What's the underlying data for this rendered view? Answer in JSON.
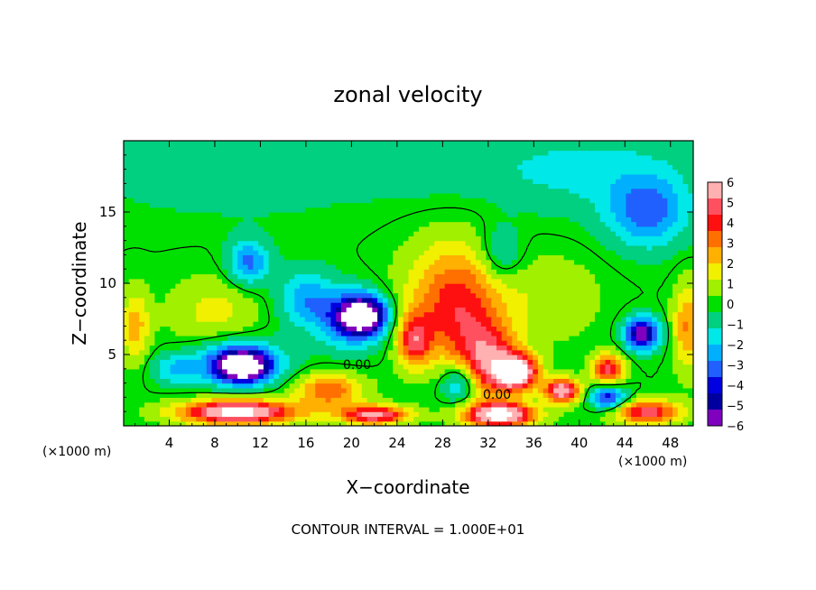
{
  "chart_data": {
    "type": "heatmap",
    "title": "zonal velocity",
    "xlabel": "X−coordinate",
    "ylabel": "Z−coordinate",
    "x_unit_label": "(×1000 m)",
    "x_unit_label_right": "(×1000 m)",
    "xlim": [
      0,
      50
    ],
    "ylim": [
      0,
      20
    ],
    "x_ticks": [
      "4",
      "8",
      "12",
      "16",
      "20",
      "24",
      "28",
      "32",
      "36",
      "40",
      "44",
      "48"
    ],
    "y_ticks": [
      "5",
      "10",
      "15"
    ],
    "colorbar": {
      "range": [
        -6,
        6
      ],
      "labels": [
        "6",
        "5",
        "4",
        "3",
        "2",
        "1",
        "0",
        "−1",
        "−2",
        "−3",
        "−4",
        "−5",
        "−6"
      ],
      "colors": [
        "#ffb0b0",
        "#ff5060",
        "#ff1010",
        "#ff7000",
        "#ffb000",
        "#f0f000",
        "#a0f000",
        "#00e000",
        "#00d080",
        "#00e8e8",
        "#00b0ff",
        "#2060ff",
        "#0000e0",
        "#0000a0",
        "#8000c0"
      ]
    },
    "contour_labels": [
      "0.00",
      "0.00"
    ],
    "footer": "CONTOUR INTERVAL = 1.000E+01",
    "features": [
      {
        "x": 11.0,
        "z": 11.5,
        "value": -3.2,
        "sx": 1.8,
        "sz": 1.6
      },
      {
        "x": 16.0,
        "z": 9.0,
        "value": -2.5,
        "sx": 2.5,
        "sz": 2.0
      },
      {
        "x": 21.0,
        "z": 7.8,
        "value": -7.0,
        "sx": 1.9,
        "sz": 1.2
      },
      {
        "x": 20.0,
        "z": 7.5,
        "value": -3.5,
        "sx": 3.0,
        "sz": 2.0
      },
      {
        "x": 10.5,
        "z": 4.2,
        "value": -7.0,
        "sx": 2.2,
        "sz": 1.0
      },
      {
        "x": 10.0,
        "z": 4.5,
        "value": -3.5,
        "sx": 4.0,
        "sz": 1.6
      },
      {
        "x": 45.5,
        "z": 6.5,
        "value": -6.5,
        "sx": 1.4,
        "sz": 1.1
      },
      {
        "x": 46.0,
        "z": 15.0,
        "value": -3.2,
        "sx": 3.5,
        "sz": 2.5
      },
      {
        "x": 33.0,
        "z": 12.0,
        "value": -2.0,
        "sx": 2.0,
        "sz": 2.0
      },
      {
        "x": 29.5,
        "z": 3.0,
        "value": -3.0,
        "sx": 1.5,
        "sz": 1.3
      },
      {
        "x": 42.5,
        "z": 2.0,
        "value": -4.5,
        "sx": 1.5,
        "sz": 0.8
      },
      {
        "x": 4.5,
        "z": 4.0,
        "value": -2.0,
        "sx": 2.0,
        "sz": 1.0
      },
      {
        "x": 29.5,
        "z": 10.0,
        "value": 2.8,
        "sx": 4.5,
        "sz": 3.5
      },
      {
        "x": 29.0,
        "z": 7.0,
        "value": 2.5,
        "sx": 4.0,
        "sz": 3.0
      },
      {
        "x": 32.0,
        "z": 4.5,
        "value": 4.5,
        "sx": 2.5,
        "sz": 2.5
      },
      {
        "x": 34.5,
        "z": 3.8,
        "value": 7.5,
        "sx": 1.8,
        "sz": 1.2
      },
      {
        "x": 38.5,
        "z": 2.5,
        "value": 6.5,
        "sx": 1.5,
        "sz": 0.8
      },
      {
        "x": 25.5,
        "z": 6.0,
        "value": 4.0,
        "sx": 1.4,
        "sz": 1.8
      },
      {
        "x": 18.0,
        "z": 2.5,
        "value": 3.5,
        "sx": 3.0,
        "sz": 1.2
      },
      {
        "x": 10.0,
        "z": 1.0,
        "value": 7.5,
        "sx": 5.0,
        "sz": 0.8
      },
      {
        "x": 22.0,
        "z": 0.8,
        "value": 6.0,
        "sx": 3.0,
        "sz": 0.6
      },
      {
        "x": 33.0,
        "z": 0.8,
        "value": 7.5,
        "sx": 3.0,
        "sz": 0.8
      },
      {
        "x": 46.0,
        "z": 1.0,
        "value": 5.0,
        "sx": 3.0,
        "sz": 0.8
      },
      {
        "x": 42.5,
        "z": 4.0,
        "value": 5.0,
        "sx": 1.3,
        "sz": 1.0
      },
      {
        "x": 1.0,
        "z": 7.0,
        "value": 2.5,
        "sx": 1.2,
        "sz": 2.5
      },
      {
        "x": 49.5,
        "z": 7.0,
        "value": 3.0,
        "sx": 1.2,
        "sz": 3.0
      },
      {
        "x": 8.0,
        "z": 8.0,
        "value": 1.5,
        "sx": 4.0,
        "sz": 2.5
      },
      {
        "x": 38.0,
        "z": 9.0,
        "value": 1.0,
        "sx": 4.0,
        "sz": 3.0
      },
      {
        "x": 10.0,
        "z": 18.0,
        "value": -1.2,
        "sx": 12.0,
        "sz": 3.0
      },
      {
        "x": 40.0,
        "z": 18.0,
        "value": -1.5,
        "sx": 10.0,
        "sz": 3.0
      },
      {
        "x": 25.0,
        "z": 18.5,
        "value": -0.8,
        "sx": 6.0,
        "sz": 2.0
      }
    ]
  }
}
